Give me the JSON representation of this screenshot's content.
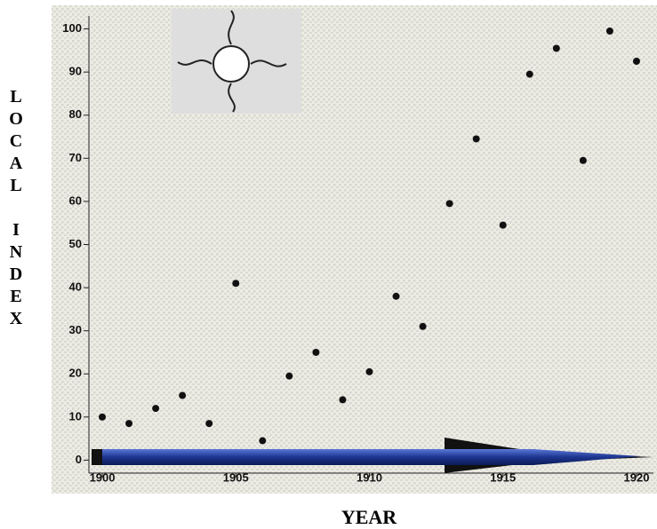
{
  "chart_data": {
    "type": "scatter",
    "x_label": "YEAR",
    "y_label": "LOCAL INDEX",
    "x": [
      1900,
      1901,
      1902,
      1903,
      1904,
      1905,
      1906,
      1907,
      1908,
      1909,
      1910,
      1911,
      1912,
      1913,
      1914,
      1915,
      1916,
      1917,
      1918,
      1919,
      1920
    ],
    "values": [
      10,
      8.5,
      12,
      15,
      8.5,
      41,
      4.5,
      19.5,
      25,
      14,
      20.5,
      38,
      31,
      59.5,
      74.5,
      54.5,
      89.5,
      95.5,
      69.5,
      99.5,
      92.5
    ],
    "color": "#111111",
    "xlim": [
      1899.5,
      1920.5
    ],
    "xticks": [
      1900,
      1905,
      1910,
      1915,
      1920
    ],
    "ylim": [
      -3,
      103
    ],
    "yticks": [
      0,
      10,
      20,
      30,
      40,
      50,
      60,
      70,
      80,
      90,
      100
    ]
  }
}
